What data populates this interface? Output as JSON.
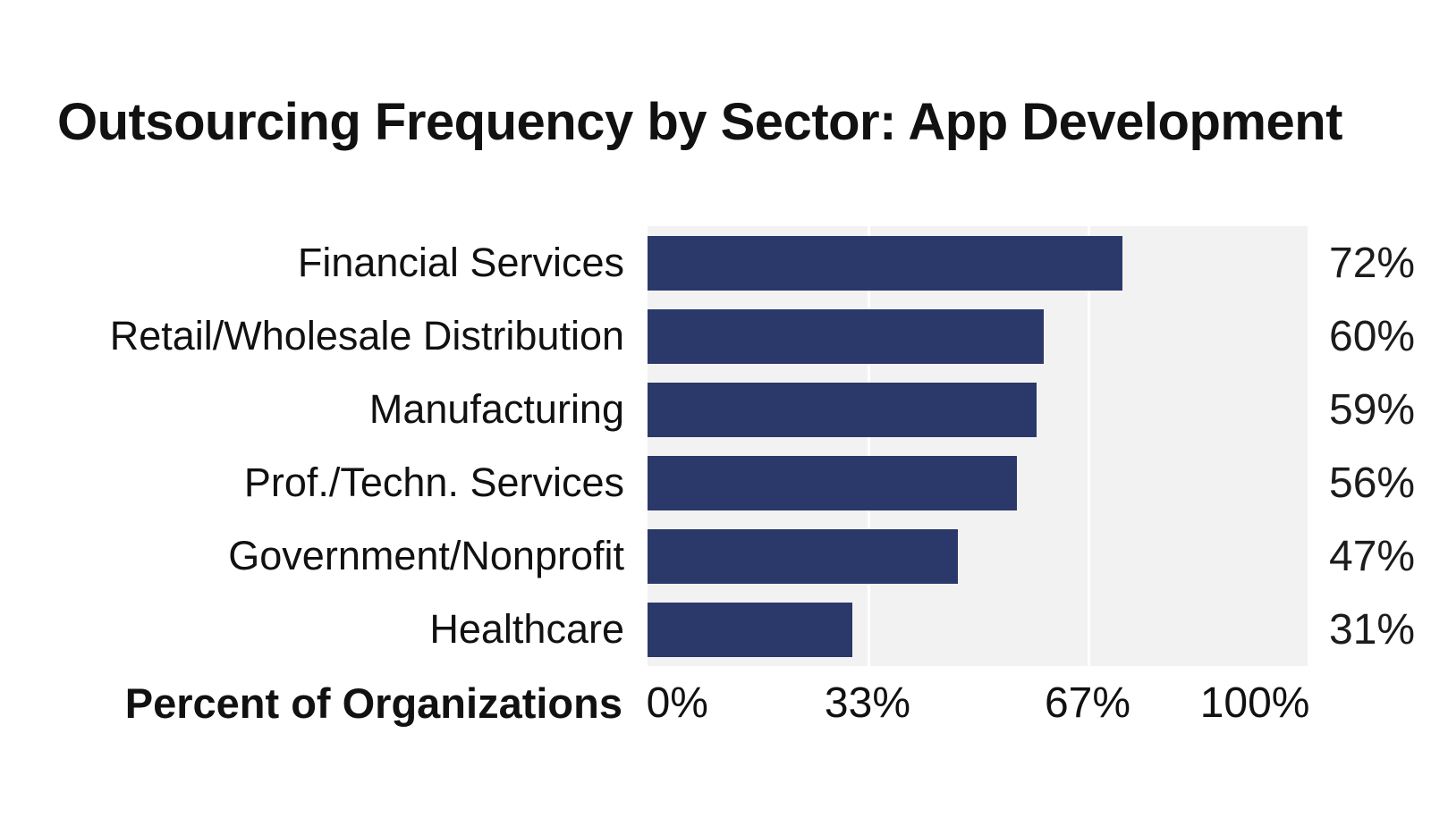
{
  "title": "Outsourcing Frequency by Sector: App Development",
  "chart_data": {
    "type": "bar",
    "orientation": "horizontal",
    "title": "Outsourcing Frequency by Sector: App Development",
    "categories": [
      "Financial Services",
      "Retail/Wholesale Distribution",
      "Manufacturing",
      "Prof./Techn. Services",
      "Government/Nonprofit",
      "Healthcare"
    ],
    "values": [
      72,
      60,
      59,
      56,
      47,
      31
    ],
    "value_labels": [
      "72%",
      "60%",
      "59%",
      "56%",
      "47%",
      "31%"
    ],
    "xlabel": "Percent of Organizations",
    "ylabel": "",
    "xlim": [
      0,
      100
    ],
    "x_ticks": [
      "0%",
      "33%",
      "67%",
      "100%"
    ],
    "x_tick_values": [
      0,
      33.33,
      66.67,
      100
    ],
    "grid": "vertical white gridlines on light-gray plot background",
    "legend": "none",
    "colors": {
      "bar": "#2a3969",
      "plot_background": "#f2f2f2",
      "gridline": "#ffffff",
      "text": "#111111",
      "page_background": "#ffffff"
    }
  }
}
